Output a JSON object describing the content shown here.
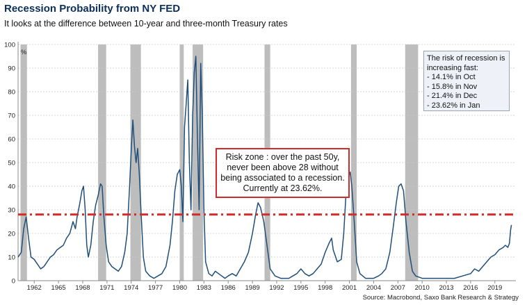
{
  "title": "Recession Probability from NY FED",
  "subtitle": "It looks at the difference between 10-year and three-month Treasury rates",
  "source": "Source: Macrobond, Saxo Bank Research & Strategy",
  "annotation_box": {
    "lines": [
      "The risk of recession is",
      "increasing fast:",
      "- 14.1% in Oct",
      "- 15.8% in Nov",
      "- 21.4% in Dec",
      "- 23.62% in Jan"
    ]
  },
  "risk_box": {
    "lines": [
      "Risk zone : over the past 50y,",
      "never been above 28 without",
      "being associated to a recession.",
      "Currently at 23.62%."
    ]
  },
  "colors": {
    "line": "#1f4e79",
    "threshold": "#d42a2a",
    "recession": "#bdbdbd",
    "grid": "#c8c8c8",
    "title": "#0b2f5a"
  },
  "chart_data": {
    "type": "line",
    "title": "Recession Probability from NY FED",
    "ylabel": "%",
    "xlim": [
      1960,
      2021.6
    ],
    "ylim": [
      0,
      100
    ],
    "y_ticks": [
      0,
      10,
      20,
      30,
      40,
      50,
      60,
      70,
      80,
      90,
      100
    ],
    "x_ticks": [
      {
        "value": 1962,
        "label": "1962"
      },
      {
        "value": 1965,
        "label": "1965"
      },
      {
        "value": 1968,
        "label": "1968"
      },
      {
        "value": 1971,
        "label": "1971"
      },
      {
        "value": 1974,
        "label": "1974"
      },
      {
        "value": 1977,
        "label": "1977"
      },
      {
        "value": 1980,
        "label": "1980"
      },
      {
        "value": 1983,
        "label": "1983"
      },
      {
        "value": 1986,
        "label": "1986"
      },
      {
        "value": 1989,
        "label": "1989"
      },
      {
        "value": 1992,
        "label": "1992"
      },
      {
        "value": 1995,
        "label": "1995"
      },
      {
        "value": 1998,
        "label": "1998"
      },
      {
        "value": 2001,
        "label": "2001"
      },
      {
        "value": 2004,
        "label": "2004"
      },
      {
        "value": 2007,
        "label": "2007"
      },
      {
        "value": 2010,
        "label": "2010"
      },
      {
        "value": 2013,
        "label": "2013"
      },
      {
        "value": 2016,
        "label": "2016"
      },
      {
        "value": 2019,
        "label": "2019"
      }
    ],
    "threshold": 28,
    "grid": true,
    "recessions": [
      [
        1960.3,
        1961.1
      ],
      [
        1969.9,
        1970.9
      ],
      [
        1973.9,
        1975.2
      ],
      [
        1980.0,
        1980.5
      ],
      [
        1981.6,
        1982.9
      ],
      [
        1990.5,
        1991.2
      ],
      [
        2001.2,
        2001.9
      ],
      [
        2007.9,
        2009.5
      ]
    ],
    "series": [
      {
        "name": "Recession probability",
        "points": [
          [
            1960.0,
            10
          ],
          [
            1960.4,
            12
          ],
          [
            1960.7,
            22
          ],
          [
            1961.0,
            27
          ],
          [
            1961.3,
            18
          ],
          [
            1961.6,
            10
          ],
          [
            1962.0,
            9
          ],
          [
            1962.4,
            7
          ],
          [
            1962.8,
            5
          ],
          [
            1963.2,
            6
          ],
          [
            1963.6,
            8
          ],
          [
            1964.0,
            10
          ],
          [
            1964.4,
            11
          ],
          [
            1964.8,
            13
          ],
          [
            1965.2,
            14
          ],
          [
            1965.6,
            15
          ],
          [
            1966.0,
            18
          ],
          [
            1966.4,
            20
          ],
          [
            1966.8,
            25
          ],
          [
            1967.1,
            22
          ],
          [
            1967.3,
            27
          ],
          [
            1967.6,
            32
          ],
          [
            1967.9,
            38
          ],
          [
            1968.1,
            40
          ],
          [
            1968.3,
            30
          ],
          [
            1968.5,
            15
          ],
          [
            1968.7,
            10
          ],
          [
            1969.0,
            15
          ],
          [
            1969.3,
            25
          ],
          [
            1969.6,
            32
          ],
          [
            1969.9,
            36
          ],
          [
            1970.2,
            41
          ],
          [
            1970.4,
            40
          ],
          [
            1970.6,
            28
          ],
          [
            1970.9,
            15
          ],
          [
            1971.2,
            8
          ],
          [
            1971.6,
            6
          ],
          [
            1972.0,
            5
          ],
          [
            1972.4,
            4
          ],
          [
            1972.8,
            6
          ],
          [
            1973.2,
            12
          ],
          [
            1973.5,
            20
          ],
          [
            1973.8,
            40
          ],
          [
            1974.0,
            55
          ],
          [
            1974.2,
            68
          ],
          [
            1974.4,
            57
          ],
          [
            1974.6,
            50
          ],
          [
            1974.8,
            56
          ],
          [
            1975.0,
            45
          ],
          [
            1975.2,
            30
          ],
          [
            1975.5,
            10
          ],
          [
            1975.8,
            4
          ],
          [
            1976.3,
            2
          ],
          [
            1976.8,
            1
          ],
          [
            1977.3,
            2
          ],
          [
            1977.8,
            3
          ],
          [
            1978.3,
            6
          ],
          [
            1978.8,
            15
          ],
          [
            1979.1,
            25
          ],
          [
            1979.4,
            38
          ],
          [
            1979.7,
            45
          ],
          [
            1980.0,
            47
          ],
          [
            1980.2,
            40
          ],
          [
            1980.4,
            25
          ],
          [
            1980.6,
            65
          ],
          [
            1980.8,
            75
          ],
          [
            1981.0,
            85
          ],
          [
            1981.2,
            50
          ],
          [
            1981.4,
            30
          ],
          [
            1981.6,
            70
          ],
          [
            1981.8,
            88
          ],
          [
            1982.0,
            95
          ],
          [
            1982.2,
            60
          ],
          [
            1982.4,
            30
          ],
          [
            1982.6,
            92
          ],
          [
            1982.8,
            70
          ],
          [
            1983.0,
            30
          ],
          [
            1983.2,
            8
          ],
          [
            1983.6,
            3
          ],
          [
            1984.0,
            2
          ],
          [
            1984.4,
            4
          ],
          [
            1984.8,
            3
          ],
          [
            1985.2,
            2
          ],
          [
            1985.6,
            1
          ],
          [
            1986.0,
            2
          ],
          [
            1986.5,
            3
          ],
          [
            1987.0,
            2
          ],
          [
            1987.5,
            5
          ],
          [
            1988.0,
            8
          ],
          [
            1988.5,
            12
          ],
          [
            1989.0,
            20
          ],
          [
            1989.4,
            28
          ],
          [
            1989.7,
            33
          ],
          [
            1990.0,
            31
          ],
          [
            1990.4,
            25
          ],
          [
            1990.8,
            15
          ],
          [
            1991.2,
            5
          ],
          [
            1991.8,
            2
          ],
          [
            1992.5,
            1
          ],
          [
            1993.5,
            1
          ],
          [
            1994.0,
            2
          ],
          [
            1994.5,
            3
          ],
          [
            1995.0,
            5
          ],
          [
            1995.5,
            3
          ],
          [
            1996.0,
            2
          ],
          [
            1996.5,
            3
          ],
          [
            1997.0,
            5
          ],
          [
            1997.5,
            7
          ],
          [
            1998.0,
            12
          ],
          [
            1998.5,
            16
          ],
          [
            1998.8,
            18
          ],
          [
            1999.0,
            13
          ],
          [
            1999.5,
            8
          ],
          [
            2000.0,
            9
          ],
          [
            2000.3,
            20
          ],
          [
            2000.6,
            38
          ],
          [
            2000.9,
            44
          ],
          [
            2001.1,
            46
          ],
          [
            2001.3,
            40
          ],
          [
            2001.6,
            25
          ],
          [
            2001.9,
            8
          ],
          [
            2002.3,
            3
          ],
          [
            2003.0,
            1
          ],
          [
            2004.0,
            1
          ],
          [
            2004.6,
            2
          ],
          [
            2005.0,
            3
          ],
          [
            2005.5,
            5
          ],
          [
            2006.0,
            12
          ],
          [
            2006.4,
            22
          ],
          [
            2006.8,
            33
          ],
          [
            2007.1,
            40
          ],
          [
            2007.4,
            41
          ],
          [
            2007.7,
            38
          ],
          [
            2008.0,
            25
          ],
          [
            2008.4,
            12
          ],
          [
            2008.8,
            4
          ],
          [
            2009.2,
            2
          ],
          [
            2010.0,
            1
          ],
          [
            2011.0,
            1
          ],
          [
            2012.0,
            1
          ],
          [
            2013.0,
            1
          ],
          [
            2014.0,
            1
          ],
          [
            2015.0,
            2
          ],
          [
            2016.0,
            3
          ],
          [
            2016.5,
            5
          ],
          [
            2017.0,
            4
          ],
          [
            2017.5,
            6
          ],
          [
            2018.0,
            8
          ],
          [
            2018.5,
            10
          ],
          [
            2019.0,
            11
          ],
          [
            2019.5,
            13
          ],
          [
            2020.0,
            14
          ],
          [
            2020.3,
            15
          ],
          [
            2020.6,
            14.1
          ],
          [
            2020.8,
            15.8
          ],
          [
            2020.95,
            21.4
          ],
          [
            2021.05,
            23.62
          ]
        ]
      }
    ]
  }
}
